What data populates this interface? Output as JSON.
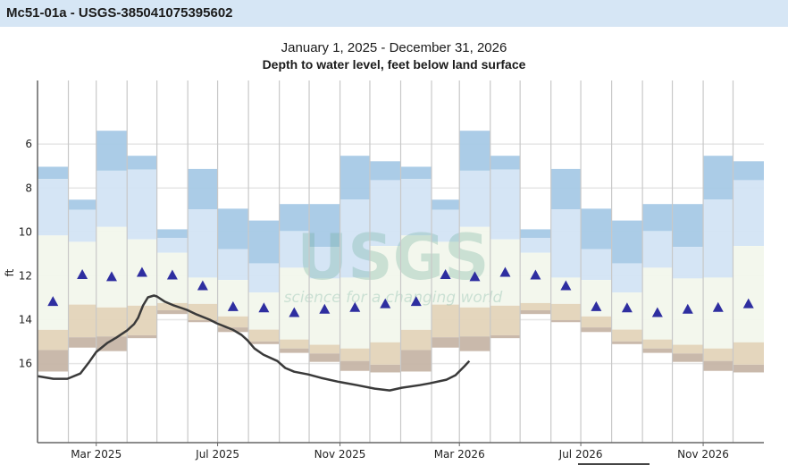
{
  "header": {
    "title": "Mc51-01a - USGS-385041075395602"
  },
  "chart_data": {
    "type": "percentile-bars-with-line",
    "subtitle": "January 1, 2025 - December 31, 2026",
    "title": "Depth to water level, feet below land surface",
    "ylabel": "ft",
    "ylim": [
      19.6,
      3.1
    ],
    "y_inverted": true,
    "yticks": [
      6,
      8,
      10,
      12,
      14,
      16
    ],
    "xlim": [
      "2025-01-01",
      "2027-01-01"
    ],
    "xticks": [
      {
        "date": "2025-03-01",
        "label": "Mar 2025"
      },
      {
        "date": "2025-07-01",
        "label": "Jul 2025"
      },
      {
        "date": "2025-11-01",
        "label": "Nov 2025"
      },
      {
        "date": "2026-03-01",
        "label": "Mar 2026"
      },
      {
        "date": "2026-07-01",
        "label": "Jul 2026"
      },
      {
        "date": "2026-11-01",
        "label": "Nov 2026"
      }
    ],
    "grid": true,
    "band_colors": [
      "#a6c9e6",
      "#d3e4f4",
      "#f2f7ec",
      "#e3d4b9",
      "#c6b5a6"
    ],
    "median_color": "#2e2ea0",
    "line_color": "#3a3a3a",
    "monthly_bands": [
      {
        "month": "Jan",
        "edges": [
          7.03,
          7.59,
          10.16,
          14.46,
          15.38,
          16.36
        ],
        "marker": 13.17
      },
      {
        "month": "Feb",
        "edges": [
          8.53,
          8.99,
          10.45,
          13.31,
          14.8,
          15.27
        ],
        "marker": 11.94
      },
      {
        "month": "Mar",
        "edges": [
          5.39,
          7.21,
          9.77,
          13.44,
          14.76,
          15.43
        ],
        "marker": 12.04
      },
      {
        "month": "Apr",
        "edges": [
          6.53,
          7.16,
          10.34,
          13.36,
          14.71,
          14.84
        ],
        "marker": 11.84
      },
      {
        "month": "May",
        "edges": [
          9.88,
          10.27,
          10.95,
          13.24,
          13.57,
          13.74
        ],
        "marker": 11.96
      },
      {
        "month": "Jun",
        "edges": [
          7.13,
          8.97,
          12.08,
          13.28,
          14.02,
          14.11
        ],
        "marker": 12.45
      },
      {
        "month": "Jul",
        "edges": [
          8.94,
          10.78,
          12.19,
          13.85,
          14.35,
          14.56
        ],
        "marker": 13.4
      },
      {
        "month": "Aug",
        "edges": [
          9.48,
          11.43,
          12.76,
          14.45,
          14.99,
          15.11
        ],
        "marker": 13.46
      },
      {
        "month": "Sep",
        "edges": [
          8.73,
          9.96,
          11.63,
          14.9,
          15.31,
          15.51
        ],
        "marker": 13.67
      },
      {
        "month": "Oct",
        "edges": [
          8.73,
          10.68,
          12.12,
          15.14,
          15.54,
          15.92
        ],
        "marker": 13.52
      },
      {
        "month": "Nov",
        "edges": [
          6.53,
          8.52,
          12.08,
          15.31,
          15.88,
          16.33
        ],
        "marker": 13.44
      },
      {
        "month": "Dec",
        "edges": [
          6.78,
          7.64,
          10.64,
          15.03,
          16.05,
          16.4
        ],
        "marker": 13.27
      }
    ],
    "series": [
      {
        "points": [
          [
            "2025-01-01",
            16.57
          ],
          [
            "2025-01-17",
            16.69
          ],
          [
            "2025-01-31",
            16.69
          ],
          [
            "2025-02-13",
            16.45
          ],
          [
            "2025-02-22",
            15.92
          ],
          [
            "2025-03-01",
            15.47
          ],
          [
            "2025-03-12",
            15.06
          ],
          [
            "2025-03-21",
            14.82
          ],
          [
            "2025-04-01",
            14.49
          ],
          [
            "2025-04-08",
            14.2
          ],
          [
            "2025-04-12",
            13.92
          ],
          [
            "2025-04-17",
            13.35
          ],
          [
            "2025-04-22",
            12.98
          ],
          [
            "2025-04-28",
            12.9
          ],
          [
            "2025-05-01",
            12.94
          ],
          [
            "2025-05-09",
            13.18
          ],
          [
            "2025-05-18",
            13.35
          ],
          [
            "2025-05-31",
            13.55
          ],
          [
            "2025-06-10",
            13.76
          ],
          [
            "2025-06-23",
            14.0
          ],
          [
            "2025-06-30",
            14.16
          ],
          [
            "2025-07-16",
            14.45
          ],
          [
            "2025-07-25",
            14.69
          ],
          [
            "2025-07-31",
            14.94
          ],
          [
            "2025-08-07",
            15.31
          ],
          [
            "2025-08-16",
            15.59
          ],
          [
            "2025-08-30",
            15.88
          ],
          [
            "2025-09-07",
            16.2
          ],
          [
            "2025-09-16",
            16.37
          ],
          [
            "2025-09-30",
            16.49
          ],
          [
            "2025-10-13",
            16.65
          ],
          [
            "2025-10-30",
            16.82
          ],
          [
            "2025-11-18",
            16.98
          ],
          [
            "2025-12-06",
            17.14
          ],
          [
            "2025-12-21",
            17.22
          ],
          [
            "2026-01-02",
            17.1
          ],
          [
            "2026-01-20",
            16.98
          ],
          [
            "2026-01-30",
            16.9
          ],
          [
            "2026-02-16",
            16.73
          ],
          [
            "2026-02-25",
            16.53
          ],
          [
            "2026-03-06",
            16.12
          ],
          [
            "2026-03-11",
            15.88
          ]
        ]
      }
    ]
  },
  "watermark": {
    "logo": "USGS",
    "tagline": "science for a changing world"
  }
}
